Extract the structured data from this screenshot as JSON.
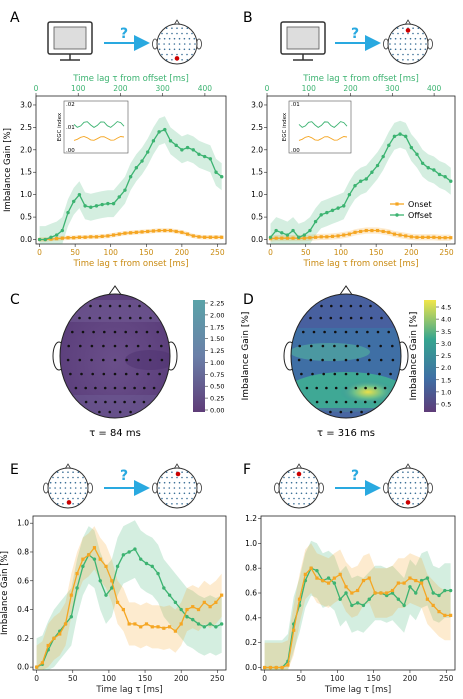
{
  "figure": {
    "colors": {
      "onset": "#f5a623",
      "offset": "#3cb371",
      "arrow": "#29a9e0",
      "head_red": "#cc0000",
      "dot": "#3a6e96"
    },
    "question_mark": "?",
    "panels_labels": [
      "A",
      "B",
      "C",
      "D",
      "E",
      "F"
    ]
  },
  "chart_data": [
    {
      "panel": "A",
      "type": "line",
      "xlabel": "Time lag τ from onset [ms]",
      "x2label": "Time lag τ from offset [ms]",
      "ylabel": "Imbalance Gain [%]",
      "xlim": [
        -5,
        262
      ],
      "x2lim": [
        0,
        450
      ],
      "ylim": [
        -0.1,
        3.2
      ],
      "xticks": [
        0,
        50,
        100,
        150,
        200,
        250
      ],
      "x2ticks": [
        0,
        100,
        200,
        300,
        400
      ],
      "yticks": [
        0.0,
        0.5,
        1.0,
        1.5,
        2.0,
        2.5,
        3.0
      ],
      "x": [
        0,
        8,
        16,
        24,
        32,
        40,
        48,
        56,
        64,
        72,
        80,
        88,
        96,
        104,
        112,
        120,
        128,
        136,
        144,
        152,
        160,
        168,
        176,
        184,
        192,
        200,
        208,
        216,
        224,
        232,
        240,
        248,
        256
      ],
      "series": [
        {
          "name": "Onset",
          "values": [
            0.0,
            0.0,
            0.01,
            0.02,
            0.03,
            0.04,
            0.04,
            0.05,
            0.05,
            0.06,
            0.06,
            0.07,
            0.08,
            0.1,
            0.12,
            0.14,
            0.15,
            0.16,
            0.17,
            0.18,
            0.19,
            0.2,
            0.2,
            0.2,
            0.18,
            0.16,
            0.12,
            0.08,
            0.06,
            0.05,
            0.05,
            0.05,
            0.05
          ],
          "band": 0.05
        },
        {
          "name": "Offset",
          "values": [
            0.0,
            0.0,
            0.05,
            0.1,
            0.2,
            0.6,
            0.85,
            1.0,
            0.75,
            0.72,
            0.75,
            0.78,
            0.8,
            0.8,
            0.95,
            1.1,
            1.4,
            1.6,
            1.75,
            1.95,
            2.2,
            2.4,
            2.45,
            2.2,
            2.1,
            2.0,
            2.05,
            2.0,
            1.9,
            1.85,
            1.8,
            1.5,
            1.4
          ],
          "band": 0.3
        }
      ],
      "legend": [
        "Onset",
        "Offset"
      ],
      "inset": {
        "ylabel": "EGC index",
        "yticks": [
          ".00",
          ".01",
          ".02"
        ]
      },
      "head_markers": "Onset"
    },
    {
      "panel": "B",
      "type": "line",
      "xlabel": "Time lag τ from onset [ms]",
      "x2label": "Time lag τ from offset [ms]",
      "ylabel": "",
      "xlim": [
        -5,
        262
      ],
      "x2lim": [
        0,
        450
      ],
      "ylim": [
        -0.1,
        3.2
      ],
      "xticks": [
        0,
        50,
        100,
        150,
        200,
        250
      ],
      "x2ticks": [
        0,
        100,
        200,
        300,
        400
      ],
      "yticks": [
        0.0,
        0.5,
        1.0,
        1.5,
        2.0,
        2.5,
        3.0
      ],
      "x": [
        0,
        8,
        16,
        24,
        32,
        40,
        48,
        56,
        64,
        72,
        80,
        88,
        96,
        104,
        112,
        120,
        128,
        136,
        144,
        152,
        160,
        168,
        176,
        184,
        192,
        200,
        208,
        216,
        224,
        232,
        240,
        248,
        256
      ],
      "series": [
        {
          "name": "Onset",
          "values": [
            0.02,
            0.03,
            0.03,
            0.03,
            0.03,
            0.03,
            0.03,
            0.04,
            0.05,
            0.06,
            0.06,
            0.07,
            0.08,
            0.1,
            0.12,
            0.16,
            0.18,
            0.2,
            0.2,
            0.2,
            0.18,
            0.16,
            0.12,
            0.1,
            0.08,
            0.06,
            0.05,
            0.05,
            0.05,
            0.05,
            0.04,
            0.04,
            0.04
          ],
          "band": 0.07
        },
        {
          "name": "Offset",
          "values": [
            0.05,
            0.2,
            0.15,
            0.1,
            0.2,
            0.05,
            0.1,
            0.2,
            0.4,
            0.55,
            0.6,
            0.65,
            0.7,
            0.75,
            1.0,
            1.2,
            1.3,
            1.35,
            1.5,
            1.65,
            1.85,
            2.1,
            2.3,
            2.35,
            2.3,
            2.05,
            1.9,
            1.7,
            1.6,
            1.55,
            1.45,
            1.4,
            1.3
          ],
          "band": 0.3
        }
      ],
      "legend": [
        "Onset",
        "Offset"
      ],
      "inset": {
        "ylabel": "EGC index",
        "yticks": [
          ".00",
          ".01"
        ]
      }
    },
    {
      "panel": "C",
      "type": "heatmap",
      "annotation": "τ = 84 ms",
      "colorbar_label": "Imbalance Gain [%]",
      "colorbar_ticks": [
        "0.00",
        "0.25",
        "0.50",
        "0.75",
        "1.00",
        "1.25",
        "1.50",
        "1.75",
        "2.00",
        "2.25"
      ]
    },
    {
      "panel": "D",
      "type": "heatmap",
      "annotation": "τ = 316 ms",
      "colorbar_label": "Imbalance Gain [%]",
      "colorbar_ticks": [
        "0.5",
        "1.0",
        "1.5",
        "2.0",
        "2.5",
        "3.0",
        "3.5",
        "4.0",
        "4.5"
      ]
    },
    {
      "panel": "E",
      "type": "line",
      "xlabel": "Time lag τ [ms]",
      "ylabel": "Imbalance Gain [%]",
      "xlim": [
        -5,
        262
      ],
      "ylim": [
        -0.02,
        1.05
      ],
      "xticks": [
        0,
        50,
        100,
        150,
        200,
        250
      ],
      "yticks": [
        0.0,
        0.2,
        0.4,
        0.6,
        0.8,
        1.0
      ],
      "x": [
        0,
        8,
        16,
        24,
        32,
        40,
        48,
        56,
        64,
        72,
        80,
        88,
        96,
        104,
        112,
        120,
        128,
        136,
        144,
        152,
        160,
        168,
        176,
        184,
        192,
        200,
        208,
        216,
        224,
        232,
        240,
        248,
        256
      ],
      "series": [
        {
          "name": "Onset",
          "values": [
            0.0,
            0.03,
            0.15,
            0.2,
            0.23,
            0.3,
            0.5,
            0.65,
            0.75,
            0.78,
            0.83,
            0.75,
            0.7,
            0.6,
            0.45,
            0.4,
            0.3,
            0.3,
            0.28,
            0.3,
            0.28,
            0.28,
            0.27,
            0.28,
            0.25,
            0.3,
            0.4,
            0.42,
            0.4,
            0.45,
            0.42,
            0.45,
            0.5
          ],
          "band": 0.15
        },
        {
          "name": "Offset",
          "values": [
            0.0,
            0.02,
            0.12,
            0.2,
            0.25,
            0.3,
            0.35,
            0.55,
            0.7,
            0.78,
            0.75,
            0.6,
            0.5,
            0.55,
            0.7,
            0.78,
            0.8,
            0.82,
            0.75,
            0.72,
            0.7,
            0.65,
            0.55,
            0.5,
            0.45,
            0.4,
            0.35,
            0.33,
            0.3,
            0.28,
            0.3,
            0.28,
            0.3
          ],
          "band": 0.2
        }
      ]
    },
    {
      "panel": "F",
      "type": "line",
      "xlabel": "Time lag τ [ms]",
      "ylabel": "",
      "xlim": [
        -5,
        262
      ],
      "ylim": [
        -0.02,
        1.22
      ],
      "xticks": [
        0,
        50,
        100,
        150,
        200,
        250
      ],
      "yticks": [
        0.0,
        0.2,
        0.4,
        0.6,
        0.8,
        1.0,
        1.2
      ],
      "x": [
        0,
        8,
        16,
        24,
        32,
        40,
        48,
        56,
        64,
        72,
        80,
        88,
        96,
        104,
        112,
        120,
        128,
        136,
        144,
        152,
        160,
        168,
        176,
        184,
        192,
        200,
        208,
        216,
        224,
        232,
        240,
        248,
        256
      ],
      "series": [
        {
          "name": "Onset",
          "values": [
            0.0,
            0.0,
            0.0,
            0.0,
            0.02,
            0.3,
            0.55,
            0.75,
            0.8,
            0.72,
            0.7,
            0.68,
            0.72,
            0.75,
            0.65,
            0.6,
            0.62,
            0.7,
            0.72,
            0.6,
            0.6,
            0.6,
            0.62,
            0.68,
            0.68,
            0.72,
            0.7,
            0.68,
            0.55,
            0.5,
            0.45,
            0.42,
            0.42
          ],
          "band": 0.2
        },
        {
          "name": "Offset",
          "values": [
            0.0,
            0.0,
            0.0,
            0.0,
            0.05,
            0.35,
            0.5,
            0.7,
            0.8,
            0.78,
            0.7,
            0.72,
            0.68,
            0.55,
            0.6,
            0.5,
            0.52,
            0.5,
            0.55,
            0.6,
            0.6,
            0.58,
            0.6,
            0.55,
            0.5,
            0.65,
            0.6,
            0.7,
            0.72,
            0.6,
            0.58,
            0.62,
            0.62
          ],
          "band": 0.22
        }
      ]
    }
  ]
}
